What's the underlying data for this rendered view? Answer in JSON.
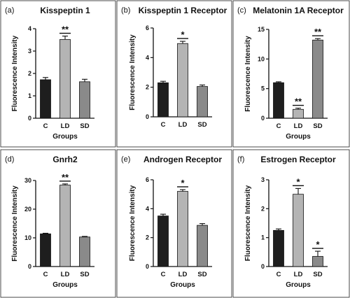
{
  "colors": {
    "C": "#1e1e1e",
    "LD": "#b4b4b4",
    "SD": "#8a8a8a",
    "frame": "#222222"
  },
  "chart_data": [
    {
      "type": "bar",
      "tag": "(a)",
      "title": "Kisspeptin 1",
      "xlabel": "Groups",
      "ylabel": "Fluorescence Intensity",
      "categories": [
        "C",
        "LD",
        "SD"
      ],
      "values": [
        1.72,
        3.52,
        1.63
      ],
      "errors": [
        0.1,
        0.15,
        0.11
      ],
      "significance": [
        "",
        "**",
        ""
      ],
      "ylim": [
        0,
        4
      ],
      "yticks": [
        0,
        1,
        2,
        3,
        4
      ]
    },
    {
      "type": "bar",
      "tag": "(b)",
      "title": "Kisspeptin 1 Receptor",
      "xlabel": "",
      "ylabel": "Fluorescence Intensity",
      "categories": [
        "C",
        "LD",
        "SD"
      ],
      "values": [
        2.3,
        4.95,
        2.05
      ],
      "errors": [
        0.1,
        0.15,
        0.1
      ],
      "significance": [
        "",
        "*",
        ""
      ],
      "ylim": [
        0,
        6
      ],
      "yticks": [
        0,
        2,
        4,
        6
      ]
    },
    {
      "type": "bar",
      "tag": "(c)",
      "title": "Melatonin 1A Receptor",
      "xlabel": "Groups",
      "ylabel": "Fluorescence Intensity",
      "categories": [
        "C",
        "LD",
        "SD"
      ],
      "values": [
        6.0,
        1.5,
        13.2
      ],
      "errors": [
        0.15,
        0.2,
        0.25
      ],
      "significance": [
        "",
        "**",
        "**"
      ],
      "ylim": [
        0,
        15
      ],
      "yticks": [
        0,
        5,
        10,
        15
      ]
    },
    {
      "type": "bar",
      "tag": "(d)",
      "title": "Gnrh2",
      "xlabel": "Groups",
      "ylabel": "Fluorescence Intensity",
      "categories": [
        "C",
        "LD",
        "SD"
      ],
      "values": [
        11.4,
        28.4,
        10.3
      ],
      "errors": [
        0.2,
        0.4,
        0.2
      ],
      "significance": [
        "",
        "**",
        ""
      ],
      "ylim": [
        0,
        30
      ],
      "yticks": [
        0,
        10,
        20,
        30
      ]
    },
    {
      "type": "bar",
      "tag": "(e)",
      "title": "Androgen Receptor",
      "xlabel": "Groups",
      "ylabel": "Fluorescence Intensity",
      "categories": [
        "C",
        "LD",
        "SD"
      ],
      "values": [
        3.5,
        5.2,
        2.85
      ],
      "errors": [
        0.12,
        0.12,
        0.12
      ],
      "significance": [
        "",
        "*",
        ""
      ],
      "ylim": [
        0,
        6
      ],
      "yticks": [
        0,
        2,
        4,
        6
      ]
    },
    {
      "type": "bar",
      "tag": "(f)",
      "title": "Estrogen Receptor",
      "xlabel": "Groups",
      "ylabel": "Fluorescence Intensity",
      "categories": [
        "C",
        "LD",
        "SD"
      ],
      "values": [
        1.25,
        2.5,
        0.35
      ],
      "errors": [
        0.05,
        0.2,
        0.18
      ],
      "significance": [
        "",
        "*",
        "*"
      ],
      "ylim": [
        0,
        3
      ],
      "yticks": [
        0,
        1,
        2,
        3
      ]
    }
  ]
}
